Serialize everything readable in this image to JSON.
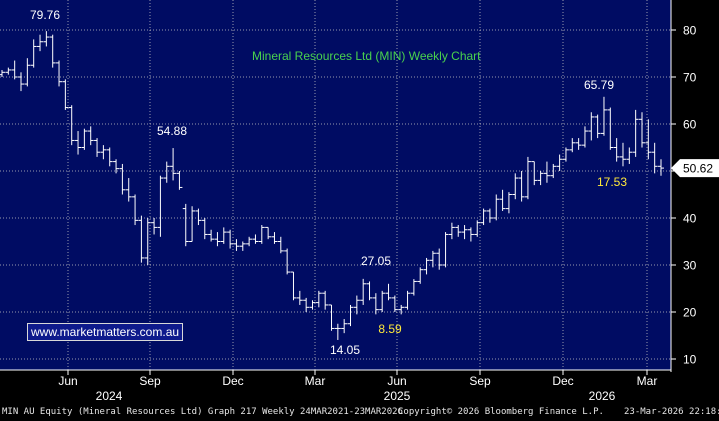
{
  "chart_data": {
    "type": "ohlc",
    "title": "Mineral Resources Ltd (MIN) Weekly Chart",
    "ylim": [
      6,
      88
    ],
    "yticks": [
      10,
      20,
      30,
      40,
      50,
      60,
      70,
      80
    ],
    "month_ticks": [
      "Jun",
      "Sep",
      "Dec",
      "Mar",
      "Jun",
      "Sep",
      "Dec",
      "Mar"
    ],
    "year_labels": [
      "2024",
      "2025",
      "2026"
    ],
    "last_price": "50.62",
    "annotations": [
      "79.76",
      "54.88",
      "27.05",
      "14.05",
      "8.59",
      "65.79",
      "17.53"
    ],
    "bars": [
      {
        "h": 71.5,
        "l": 70.0,
        "o": 70.5,
        "c": 71.0
      },
      {
        "h": 72.0,
        "l": 70.5,
        "o": 71.0,
        "c": 71.5
      },
      {
        "h": 73.5,
        "l": 69.5,
        "o": 71.5,
        "c": 70.0
      },
      {
        "h": 71.0,
        "l": 67.0,
        "o": 70.0,
        "c": 68.5
      },
      {
        "h": 74.0,
        "l": 68.0,
        "o": 68.5,
        "c": 72.5
      },
      {
        "h": 78.0,
        "l": 72.0,
        "o": 72.5,
        "c": 76.5
      },
      {
        "h": 79.0,
        "l": 75.5,
        "o": 76.5,
        "c": 77.5
      },
      {
        "h": 79.76,
        "l": 76.5,
        "o": 77.5,
        "c": 78.5
      },
      {
        "h": 79.0,
        "l": 72.0,
        "o": 78.5,
        "c": 73.0
      },
      {
        "h": 73.5,
        "l": 68.0,
        "o": 73.0,
        "c": 69.0
      },
      {
        "h": 69.5,
        "l": 63.0,
        "o": 69.0,
        "c": 63.5
      },
      {
        "h": 64.0,
        "l": 55.5,
        "o": 63.5,
        "c": 56.5
      },
      {
        "h": 58.5,
        "l": 53.5,
        "o": 56.5,
        "c": 55.0
      },
      {
        "h": 59.0,
        "l": 54.5,
        "o": 55.0,
        "c": 58.5
      },
      {
        "h": 59.5,
        "l": 55.5,
        "o": 58.5,
        "c": 56.5
      },
      {
        "h": 57.0,
        "l": 53.0,
        "o": 56.5,
        "c": 54.0
      },
      {
        "h": 55.5,
        "l": 52.5,
        "o": 54.0,
        "c": 54.5
      },
      {
        "h": 55.0,
        "l": 51.0,
        "o": 54.5,
        "c": 52.0
      },
      {
        "h": 52.5,
        "l": 49.5,
        "o": 52.0,
        "c": 50.5
      },
      {
        "h": 51.5,
        "l": 45.0,
        "o": 50.5,
        "c": 46.0
      },
      {
        "h": 48.5,
        "l": 43.5,
        "o": 46.0,
        "c": 44.5
      },
      {
        "h": 45.0,
        "l": 38.5,
        "o": 44.5,
        "c": 39.5
      },
      {
        "h": 40.5,
        "l": 30.5,
        "o": 39.5,
        "c": 31.5
      },
      {
        "h": 40.0,
        "l": 30.0,
        "o": 31.5,
        "c": 39.0
      },
      {
        "h": 40.0,
        "l": 36.5,
        "o": 39.0,
        "c": 38.0
      },
      {
        "h": 49.0,
        "l": 36.0,
        "o": 38.0,
        "c": 48.5
      },
      {
        "h": 52.0,
        "l": 47.5,
        "o": 48.5,
        "c": 51.0
      },
      {
        "h": 54.88,
        "l": 48.0,
        "o": 51.0,
        "c": 49.5
      },
      {
        "h": 50.0,
        "l": 46.0,
        "o": 49.5,
        "c": 46.5
      },
      {
        "h": 43.0,
        "l": 34.0,
        "o": 42.0,
        "c": 35.0
      },
      {
        "h": 42.5,
        "l": 35.0,
        "o": 35.0,
        "c": 41.5
      },
      {
        "h": 42.0,
        "l": 38.5,
        "o": 41.5,
        "c": 39.5
      },
      {
        "h": 40.0,
        "l": 35.5,
        "o": 39.5,
        "c": 36.5
      },
      {
        "h": 37.5,
        "l": 35.0,
        "o": 36.5,
        "c": 35.5
      },
      {
        "h": 37.0,
        "l": 34.0,
        "o": 35.5,
        "c": 35.0
      },
      {
        "h": 38.0,
        "l": 34.5,
        "o": 35.0,
        "c": 37.0
      },
      {
        "h": 37.5,
        "l": 33.5,
        "o": 37.0,
        "c": 34.5
      },
      {
        "h": 35.5,
        "l": 33.0,
        "o": 34.5,
        "c": 34.0
      },
      {
        "h": 35.0,
        "l": 33.0,
        "o": 34.0,
        "c": 34.5
      },
      {
        "h": 36.0,
        "l": 34.0,
        "o": 34.5,
        "c": 35.5
      },
      {
        "h": 36.5,
        "l": 34.5,
        "o": 35.5,
        "c": 35.0
      },
      {
        "h": 38.5,
        "l": 34.5,
        "o": 35.0,
        "c": 38.0
      },
      {
        "h": 38.0,
        "l": 35.5,
        "o": 38.0,
        "c": 36.0
      },
      {
        "h": 37.0,
        "l": 34.5,
        "o": 36.0,
        "c": 35.0
      },
      {
        "h": 36.0,
        "l": 32.5,
        "o": 35.0,
        "c": 33.0
      },
      {
        "h": 33.5,
        "l": 28.0,
        "o": 33.0,
        "c": 28.5
      },
      {
        "h": 28.5,
        "l": 22.5,
        "o": 28.5,
        "c": 23.0
      },
      {
        "h": 24.5,
        "l": 21.5,
        "o": 23.0,
        "c": 22.5
      },
      {
        "h": 23.0,
        "l": 20.0,
        "o": 22.5,
        "c": 21.0
      },
      {
        "h": 22.5,
        "l": 20.5,
        "o": 21.0,
        "c": 22.0
      },
      {
        "h": 24.5,
        "l": 21.0,
        "o": 22.0,
        "c": 24.0
      },
      {
        "h": 24.5,
        "l": 20.5,
        "o": 24.0,
        "c": 21.5
      },
      {
        "h": 21.5,
        "l": 16.0,
        "o": 21.5,
        "c": 16.5
      },
      {
        "h": 17.5,
        "l": 14.05,
        "o": 16.5,
        "c": 16.5
      },
      {
        "h": 18.5,
        "l": 15.5,
        "o": 16.5,
        "c": 17.5
      },
      {
        "h": 21.5,
        "l": 17.0,
        "o": 17.5,
        "c": 21.0
      },
      {
        "h": 23.5,
        "l": 19.5,
        "o": 21.0,
        "c": 22.5
      },
      {
        "h": 27.05,
        "l": 21.5,
        "o": 22.5,
        "c": 26.0
      },
      {
        "h": 26.5,
        "l": 22.5,
        "o": 26.0,
        "c": 23.0
      },
      {
        "h": 24.0,
        "l": 19.5,
        "o": 23.0,
        "c": 20.5
      },
      {
        "h": 24.5,
        "l": 20.0,
        "o": 20.5,
        "c": 24.0
      },
      {
        "h": 26.0,
        "l": 22.5,
        "o": 24.0,
        "c": 23.0
      },
      {
        "h": 23.5,
        "l": 20.0,
        "o": 23.0,
        "c": 20.5
      },
      {
        "h": 21.5,
        "l": 19.5,
        "o": 20.5,
        "c": 21.0
      },
      {
        "h": 24.5,
        "l": 20.5,
        "o": 21.0,
        "c": 24.0
      },
      {
        "h": 27.0,
        "l": 23.5,
        "o": 24.0,
        "c": 26.5
      },
      {
        "h": 29.5,
        "l": 26.0,
        "o": 26.5,
        "c": 29.0
      },
      {
        "h": 31.5,
        "l": 28.0,
        "o": 29.0,
        "c": 31.0
      },
      {
        "h": 33.0,
        "l": 29.5,
        "o": 31.0,
        "c": 32.5
      },
      {
        "h": 33.5,
        "l": 29.0,
        "o": 32.5,
        "c": 30.0
      },
      {
        "h": 37.0,
        "l": 29.5,
        "o": 30.0,
        "c": 36.5
      },
      {
        "h": 39.0,
        "l": 35.5,
        "o": 36.5,
        "c": 38.0
      },
      {
        "h": 38.5,
        "l": 36.0,
        "o": 38.0,
        "c": 37.0
      },
      {
        "h": 38.5,
        "l": 35.5,
        "o": 37.0,
        "c": 37.5
      },
      {
        "h": 38.0,
        "l": 35.0,
        "o": 37.5,
        "c": 36.5
      },
      {
        "h": 39.5,
        "l": 36.0,
        "o": 36.5,
        "c": 39.0
      },
      {
        "h": 42.0,
        "l": 38.5,
        "o": 39.0,
        "c": 41.5
      },
      {
        "h": 42.0,
        "l": 39.0,
        "o": 41.5,
        "c": 40.0
      },
      {
        "h": 45.0,
        "l": 39.5,
        "o": 40.0,
        "c": 44.0
      },
      {
        "h": 46.0,
        "l": 41.5,
        "o": 44.0,
        "c": 42.0
      },
      {
        "h": 45.5,
        "l": 41.0,
        "o": 42.0,
        "c": 45.0
      },
      {
        "h": 49.5,
        "l": 44.0,
        "o": 45.0,
        "c": 48.5
      },
      {
        "h": 50.0,
        "l": 43.5,
        "o": 48.5,
        "c": 44.5
      },
      {
        "h": 53.0,
        "l": 44.0,
        "o": 44.5,
        "c": 52.0
      },
      {
        "h": 52.0,
        "l": 47.0,
        "o": 52.0,
        "c": 48.0
      },
      {
        "h": 50.0,
        "l": 47.0,
        "o": 48.0,
        "c": 49.5
      },
      {
        "h": 52.0,
        "l": 47.5,
        "o": 49.5,
        "c": 49.0
      },
      {
        "h": 51.5,
        "l": 48.5,
        "o": 49.0,
        "c": 51.0
      },
      {
        "h": 53.5,
        "l": 50.0,
        "o": 51.0,
        "c": 52.5
      },
      {
        "h": 55.0,
        "l": 52.0,
        "o": 52.5,
        "c": 54.5
      },
      {
        "h": 57.0,
        "l": 54.0,
        "o": 54.5,
        "c": 56.0
      },
      {
        "h": 57.0,
        "l": 54.5,
        "o": 56.0,
        "c": 55.5
      },
      {
        "h": 59.5,
        "l": 55.0,
        "o": 55.5,
        "c": 58.5
      },
      {
        "h": 62.5,
        "l": 56.5,
        "o": 58.5,
        "c": 61.5
      },
      {
        "h": 62.0,
        "l": 57.0,
        "o": 61.5,
        "c": 58.0
      },
      {
        "h": 65.79,
        "l": 57.5,
        "o": 58.0,
        "c": 63.0
      },
      {
        "h": 63.5,
        "l": 54.5,
        "o": 63.0,
        "c": 55.0
      },
      {
        "h": 57.0,
        "l": 52.0,
        "o": 55.0,
        "c": 53.0
      },
      {
        "h": 56.0,
        "l": 51.0,
        "o": 53.0,
        "c": 52.5
      },
      {
        "h": 55.0,
        "l": 51.5,
        "o": 52.5,
        "c": 54.0
      },
      {
        "h": 63.0,
        "l": 53.0,
        "o": 54.0,
        "c": 61.0
      },
      {
        "h": 62.5,
        "l": 55.0,
        "o": 61.0,
        "c": 56.0
      },
      {
        "h": 61.0,
        "l": 52.5,
        "o": 56.0,
        "c": 54.0
      },
      {
        "h": 56.0,
        "l": 49.5,
        "o": 54.0,
        "c": 51.0
      },
      {
        "h": 52.5,
        "l": 49.0,
        "o": 51.0,
        "c": 50.62
      }
    ]
  },
  "footer": {
    "left": "MIN AU Equity (Mineral Resources Ltd) Graph 217 Weekly 24MAR2021-23MAR2026",
    "mid": "Copyright© 2026 Bloomberg Finance L.P.",
    "right": "23-Mar-2026 22:18:43"
  },
  "watermark": "www.marketmatters.com.au",
  "colors": {
    "background": "#000c63",
    "grid": "#c8c8c8",
    "bars": "#ffffff",
    "title": "#49d24e",
    "highlight": "#ffe93a",
    "axis_background": "#000000",
    "last_price_box": "#ffffff"
  }
}
